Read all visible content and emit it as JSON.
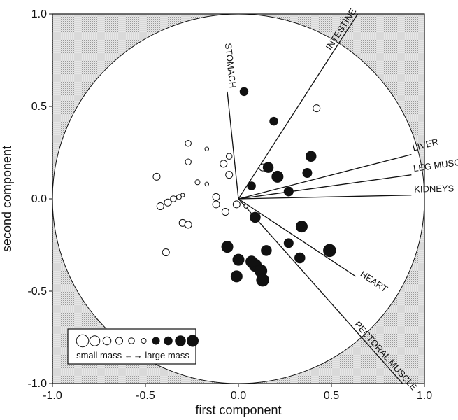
{
  "chart_data": {
    "type": "scatter",
    "title": "",
    "xlabel": "first component",
    "ylabel": "second component",
    "xlim": [
      -1.0,
      1.0
    ],
    "ylim": [
      -1.0,
      1.0
    ],
    "xticks": [
      "-1.0",
      "-0.5",
      "0.0",
      "0.5",
      "1.0"
    ],
    "yticks": [
      "1.0",
      "0.5",
      "0.0",
      "-0.5",
      "-1.0"
    ],
    "xtick_values": [
      -1.0,
      -0.5,
      0.0,
      0.5,
      1.0
    ],
    "ytick_values": [
      1.0,
      0.5,
      0.0,
      -0.5,
      -1.0
    ],
    "grid": false,
    "correlation_circle": true,
    "vectors": [
      {
        "name": "INTESTINE",
        "x": 0.5,
        "y": 0.78
      },
      {
        "name": "STOMACH",
        "x": -0.06,
        "y": 0.58
      },
      {
        "name": "LIVER",
        "x": 0.93,
        "y": 0.24
      },
      {
        "name": "LEG MUSCLE",
        "x": 0.93,
        "y": 0.13
      },
      {
        "name": "KIDNEYS",
        "x": 0.93,
        "y": 0.02
      },
      {
        "name": "HEART",
        "x": 0.63,
        "y": -0.42
      },
      {
        "name": "PECTORAL MUSCLE",
        "x": 0.6,
        "y": -0.68
      }
    ],
    "points": [
      {
        "x": -0.05,
        "y": 0.23,
        "size": 3,
        "filled": false
      },
      {
        "x": -0.27,
        "y": 0.3,
        "size": 3,
        "filled": false
      },
      {
        "x": -0.17,
        "y": 0.27,
        "size": 1,
        "filled": false
      },
      {
        "x": -0.08,
        "y": 0.19,
        "size": 4,
        "filled": false
      },
      {
        "x": -0.27,
        "y": 0.2,
        "size": 3,
        "filled": false
      },
      {
        "x": -0.05,
        "y": 0.13,
        "size": 4,
        "filled": false
      },
      {
        "x": 0.13,
        "y": 0.17,
        "size": 4,
        "filled": false
      },
      {
        "x": 0.42,
        "y": 0.49,
        "size": 4,
        "filled": false
      },
      {
        "x": -0.44,
        "y": 0.12,
        "size": 4,
        "filled": false
      },
      {
        "x": -0.22,
        "y": 0.09,
        "size": 2,
        "filled": false
      },
      {
        "x": -0.17,
        "y": 0.08,
        "size": 1,
        "filled": false
      },
      {
        "x": -0.3,
        "y": 0.02,
        "size": 1,
        "filled": false
      },
      {
        "x": -0.32,
        "y": 0.01,
        "size": 2,
        "filled": false
      },
      {
        "x": -0.35,
        "y": 0.0,
        "size": 3,
        "filled": false
      },
      {
        "x": -0.38,
        "y": -0.02,
        "size": 4,
        "filled": false
      },
      {
        "x": -0.42,
        "y": -0.04,
        "size": 4,
        "filled": false
      },
      {
        "x": -0.12,
        "y": 0.01,
        "size": 4,
        "filled": false
      },
      {
        "x": -0.12,
        "y": -0.03,
        "size": 4,
        "filled": false
      },
      {
        "x": -0.01,
        "y": -0.03,
        "size": 4,
        "filled": false
      },
      {
        "x": 0.04,
        "y": -0.04,
        "size": 1,
        "filled": false
      },
      {
        "x": -0.07,
        "y": -0.07,
        "size": 4,
        "filled": false
      },
      {
        "x": -0.3,
        "y": -0.13,
        "size": 4,
        "filled": false
      },
      {
        "x": -0.27,
        "y": -0.14,
        "size": 4,
        "filled": false
      },
      {
        "x": -0.39,
        "y": -0.29,
        "size": 4,
        "filled": false
      },
      {
        "x": 0.03,
        "y": 0.58,
        "size": 5,
        "filled": true
      },
      {
        "x": 0.19,
        "y": 0.42,
        "size": 5,
        "filled": true
      },
      {
        "x": 0.39,
        "y": 0.23,
        "size": 7,
        "filled": true
      },
      {
        "x": 0.16,
        "y": 0.17,
        "size": 7,
        "filled": true
      },
      {
        "x": 0.21,
        "y": 0.12,
        "size": 8,
        "filled": true
      },
      {
        "x": 0.37,
        "y": 0.14,
        "size": 6,
        "filled": true
      },
      {
        "x": 0.07,
        "y": 0.07,
        "size": 5,
        "filled": true
      },
      {
        "x": 0.27,
        "y": 0.04,
        "size": 6,
        "filled": true
      },
      {
        "x": 0.09,
        "y": -0.1,
        "size": 7,
        "filled": true
      },
      {
        "x": 0.34,
        "y": -0.15,
        "size": 8,
        "filled": true
      },
      {
        "x": 0.27,
        "y": -0.24,
        "size": 6,
        "filled": true
      },
      {
        "x": 0.49,
        "y": -0.28,
        "size": 9,
        "filled": true
      },
      {
        "x": -0.06,
        "y": -0.26,
        "size": 8,
        "filled": true
      },
      {
        "x": 0.15,
        "y": -0.28,
        "size": 7,
        "filled": true
      },
      {
        "x": 0.0,
        "y": -0.33,
        "size": 8,
        "filled": true
      },
      {
        "x": 0.33,
        "y": -0.32,
        "size": 7,
        "filled": true
      },
      {
        "x": 0.09,
        "y": -0.36,
        "size": 9,
        "filled": true
      },
      {
        "x": 0.12,
        "y": -0.39,
        "size": 9,
        "filled": true
      },
      {
        "x": 0.07,
        "y": -0.34,
        "size": 8,
        "filled": true
      },
      {
        "x": -0.01,
        "y": -0.42,
        "size": 8,
        "filled": true
      },
      {
        "x": 0.13,
        "y": -0.44,
        "size": 9,
        "filled": true
      }
    ],
    "legend": {
      "placement": "bottom-left",
      "text": "small mass ←→ large mass",
      "sizes": [
        9,
        7,
        5,
        4,
        3,
        2,
        4,
        5,
        7,
        8
      ],
      "filled": [
        false,
        false,
        false,
        false,
        false,
        false,
        true,
        true,
        true,
        true
      ]
    }
  }
}
